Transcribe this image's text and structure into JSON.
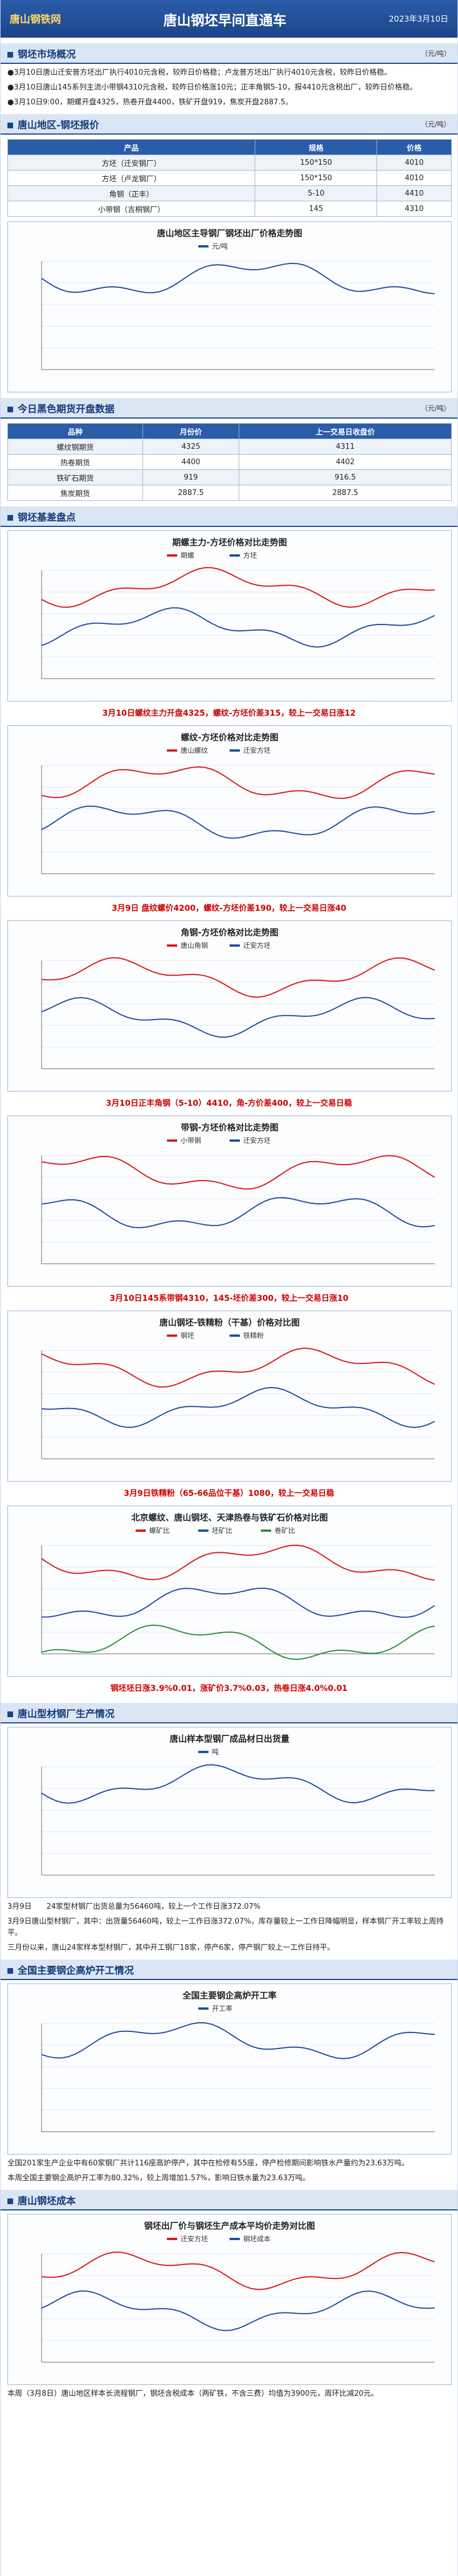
{
  "header": {
    "logo": "唐山钢铁网",
    "title": "唐山钢坯早间直通车",
    "date": "2023年3月10日"
  },
  "sections": [
    {
      "title": "钢坯市场概况",
      "unit": "（元/吨）",
      "blocks": [
        {
          "paragraphs": [
            "●3月10日唐山迁安普方坯出厂执行4010元含税，较昨日价格稳；卢龙普方坯出厂执行4010元含税，较昨日价格稳。",
            "●3月10日唐山145系列主流小带钢4310元含税，较昨日价格涨10元；正丰角钢5-10，报4410元含税出厂，较昨日价格稳。",
            "●3月10日9:00，期螺开盘4325，热卷开盘4400，铁矿开盘919，焦炭开盘2887.5。"
          ]
        }
      ]
    },
    {
      "title": "唐山地区-钢坯报价",
      "unit": "（元/吨）",
      "blocks": [
        {
          "table": {
            "header": [
              "产品",
              "规格",
              "价格"
            ],
            "rows": [
              [
                "方坯（迁安钢厂）",
                "150*150",
                "4010"
              ],
              [
                "方坯（卢龙钢厂）",
                "150*150",
                "4010"
              ],
              [
                "角钢（正丰）",
                "5-10",
                "4410"
              ],
              [
                "小带钢（吉桐钢厂）",
                "145",
                "4310"
              ]
            ]
          }
        },
        {
          "chart": {
            "title": "唐山地区主导钢厂钢坯出厂价格走势图",
            "legend": [
              "元/吨"
            ],
            "colors": [
              "#1f4e9a"
            ]
          }
        }
      ]
    },
    {
      "title": "今日黑色期货开盘数据",
      "unit": "（元/吨）",
      "blocks": [
        {
          "table": {
            "header": [
              "品种",
              "月份价",
              "上一交易日收盘价"
            ],
            "rows": [
              [
                "螺纹钢期货",
                "4325",
                "4311"
              ],
              [
                "热卷期货",
                "4400",
                "4402"
              ],
              [
                "铁矿石期货",
                "919",
                "916.5"
              ],
              [
                "焦炭期货",
                "2887.5",
                "2887.5"
              ]
            ]
          }
        }
      ]
    },
    {
      "title": "钢坯基差盘点",
      "unit": "",
      "blocks": [
        {
          "chart": {
            "title": "期螺主力-方坯价格对比走势图",
            "legend": [
              "期螺",
              "方坯"
            ],
            "colors": [
              "#d7191c",
              "#1f4e9a"
            ]
          }
        },
        {
          "caption": "3月10日螺纹主力开盘4325，螺纹-方坯价差315，较上一交易日涨12"
        },
        {
          "chart": {
            "title": "螺纹-方坯价格对比走势图",
            "legend": [
              "唐山螺纹",
              "迁安方坯"
            ],
            "colors": [
              "#d7191c",
              "#1f4e9a"
            ]
          }
        },
        {
          "caption": "3月9日 盘纹螺价4200，螺纹-方坯价差190，较上一交易日涨40"
        },
        {
          "chart": {
            "title": "角钢-方坯价格对比走势图",
            "legend": [
              "唐山角钢",
              "迁安方坯"
            ],
            "colors": [
              "#d7191c",
              "#1f4e9a"
            ]
          }
        },
        {
          "caption": "3月10日正丰角钢（5-10）4410，角-方价差400，较上一交易日稳"
        },
        {
          "chart": {
            "title": "带钢-方坯价格对比走势图",
            "legend": [
              "小带钢",
              "迁安方坯"
            ],
            "colors": [
              "#d7191c",
              "#1f4e9a"
            ]
          }
        },
        {
          "caption": "3月10日145系带钢4310，145-坯价差300，较上一交易日涨10"
        },
        {
          "chart": {
            "title": "唐山钢坯-铁精粉（干基）价格对比图",
            "legend": [
              "钢坯",
              "铁精粉"
            ],
            "colors": [
              "#d7191c",
              "#1f4e9a"
            ]
          }
        },
        {
          "caption": "3月9日铁精粉（65-66品位干基）1080，较上一交易日稳"
        },
        {
          "chart": {
            "title": "北京螺纹、唐山钢坯、天津热卷与铁矿石价格对比图",
            "legend": [
              "螺矿比",
              "坯矿比",
              "卷矿比"
            ],
            "colors": [
              "#d7191c",
              "#1f4e9a",
              "#2e8b3a"
            ]
          }
        },
        {
          "caption": "钢坯坯日涨3.9%0.01，涨矿价3.7%0.03，热卷日涨4.0%0.01"
        }
      ]
    },
    {
      "title": "唐山型材钢厂生产情况",
      "unit": "",
      "blocks": [
        {
          "chart": {
            "title": "唐山样本型钢厂成品材日出货量",
            "legend": [
              "吨"
            ],
            "colors": [
              "#1f4e9a"
            ]
          }
        },
        {
          "paragraphs": [
            "3月9日　　24家型材钢厂出货总量为56460吨，较上一个工作日涨372.07%",
            "3月9日唐山型材钢厂，其中：出货量56460吨，较上一工作日涨372.07%，库存量较上一工作日降幅明显，样本钢厂开工率较上周持平。",
            "三月份以来，唐山24家样本型材钢厂，其中开工钢厂18家，停产6家，停产钢厂较上一工作日持平。"
          ]
        }
      ]
    },
    {
      "title": "全国主要钢企高炉开工情况",
      "unit": "",
      "blocks": [
        {
          "chart": {
            "title": "全国主要钢企高炉开工率",
            "legend": [
              "开工率"
            ],
            "colors": [
              "#1f4e9a"
            ]
          }
        },
        {
          "paragraphs": [
            "全国201家生产企业中有60家钢厂共计116座高炉停产，其中在检修有55座，停产检修期间影响铁水产量约为23.63万吨。",
            "本周全国主要钢企高炉开工率为80.32%，较上周增加1.57%，影响日铁水量为23.63万吨。"
          ]
        }
      ]
    },
    {
      "title": "唐山钢坯成本",
      "unit": "",
      "blocks": [
        {
          "chart": {
            "title": "钢坯出厂价与钢坯生产成本平均价走势对比图",
            "legend": [
              "迁安方坯",
              "钢坯成本"
            ],
            "colors": [
              "#d7191c",
              "#1f4e9a"
            ]
          }
        },
        {
          "paragraphs": [
            "本周（3月8日）唐山地区样本长流程钢厂，钢坯含税成本（两矿铁，不含三费）均值为3900元，周环比减20元。"
          ]
        }
      ]
    }
  ]
}
